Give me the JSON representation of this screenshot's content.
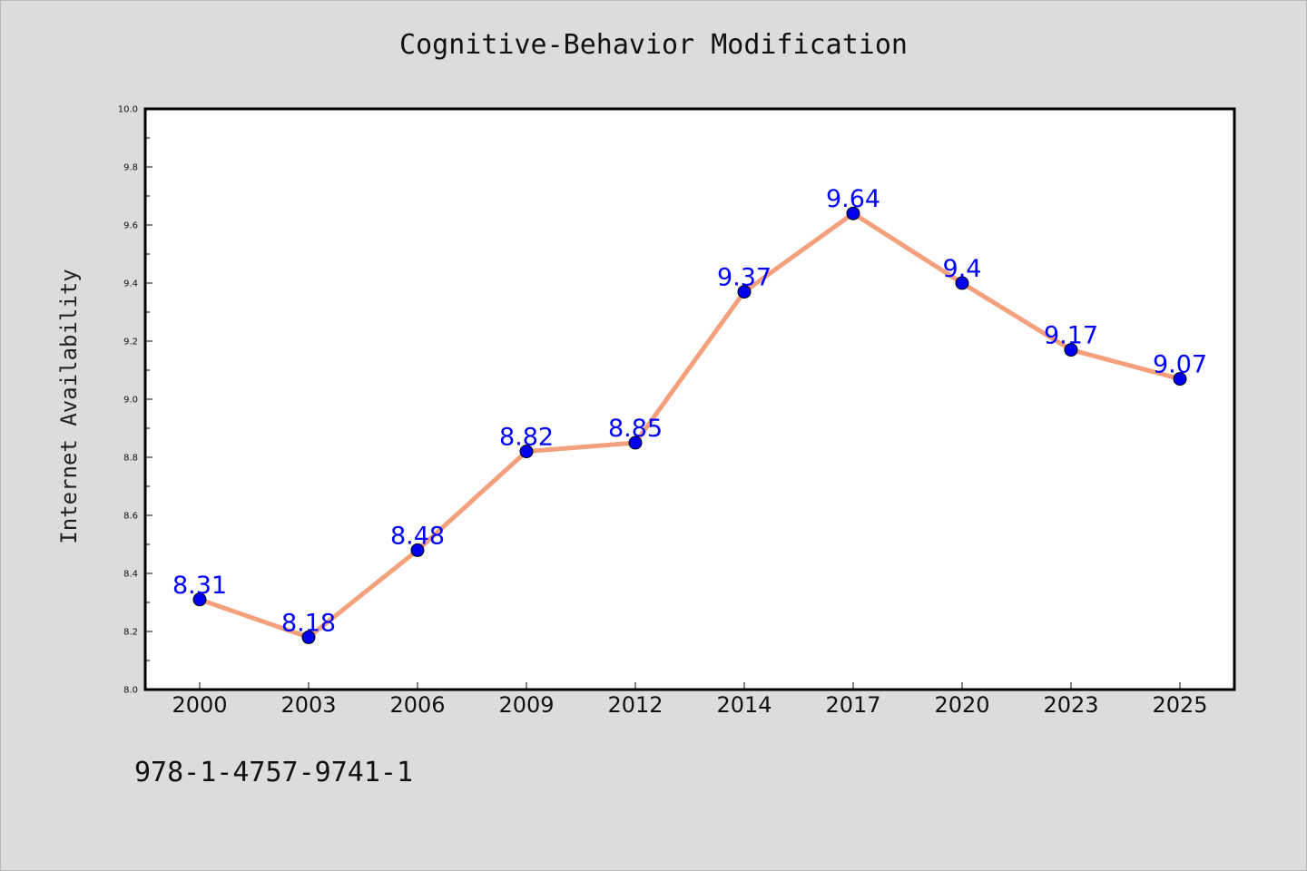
{
  "chart_data": {
    "type": "line",
    "title": "Cognitive-Behavior Modification",
    "xlabel": "",
    "ylabel": "Internet Availability",
    "categories": [
      "2000",
      "2003",
      "2006",
      "2009",
      "2012",
      "2014",
      "2017",
      "2020",
      "2023",
      "2025"
    ],
    "series": [
      {
        "values": [
          8.31,
          8.18,
          8.48,
          8.82,
          8.85,
          9.37,
          9.64,
          9.4,
          9.17,
          9.07
        ],
        "data_labels": [
          "8.31",
          "8.18",
          "8.48",
          "8.82",
          "8.85",
          "9.37",
          "9.64",
          "9.4",
          "9.17",
          "9.07"
        ]
      }
    ],
    "ylim": [
      8.0,
      10.0
    ],
    "yticks": [
      "8.0",
      "8.2",
      "8.4",
      "8.6",
      "8.8",
      "9.0",
      "9.2",
      "9.4",
      "9.6",
      "9.8",
      "10.0"
    ],
    "grid": false,
    "line_color": "#f4a07c",
    "marker_color": "#0000ee",
    "label_color": "#0000ff"
  },
  "footer": {
    "isbn": "978-1-4757-9741-1"
  }
}
